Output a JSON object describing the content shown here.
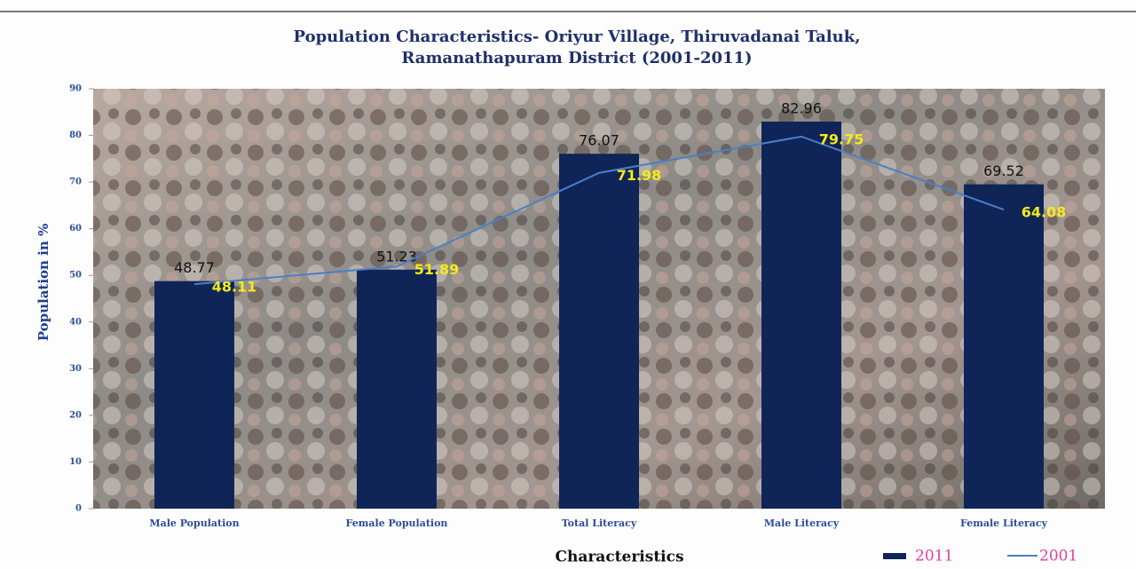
{
  "chart_data": {
    "type": "bar",
    "title": "Population Characteristics- Oriyur Village, Thiruvadanai Taluk, Ramanathapuram District (2001-2011)",
    "x_label": "Characteristics",
    "y_label": "Population in %",
    "categories": [
      "Male Population",
      "Female Population",
      "Total Literacy",
      "Male Literacy",
      "Female Literacy"
    ],
    "series": [
      {
        "name": "2011",
        "type": "bar",
        "color": "#0f2558",
        "label_color": "#111111",
        "values": [
          48.77,
          51.23,
          76.07,
          82.96,
          69.52
        ]
      },
      {
        "name": "2001",
        "type": "line",
        "color": "#4a7fc8",
        "label_color": "#f4ea1c",
        "values": [
          48.11,
          51.89,
          71.98,
          79.75,
          64.08
        ]
      }
    ],
    "ylim": [
      0,
      90
    ],
    "yticks": [
      0,
      10,
      20,
      30,
      40,
      50,
      60,
      70,
      80,
      90
    ],
    "grid": false
  }
}
